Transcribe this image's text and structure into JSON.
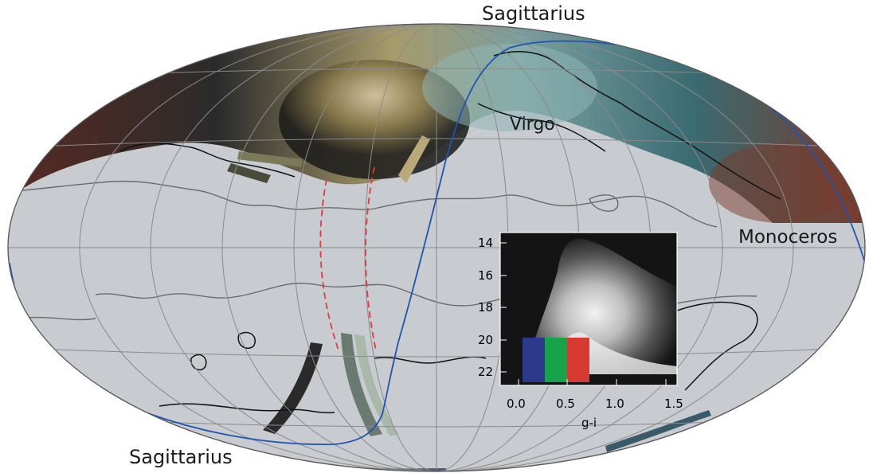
{
  "labels": {
    "sagittarius_top": "Sagittarius",
    "virgo": "Virgo",
    "monoceros": "Monoceros",
    "sagittarius_bottom": "Sagittarius"
  },
  "inset": {
    "y_ticks": [
      "14",
      "16",
      "18",
      "20",
      "22"
    ],
    "x_ticks": [
      "0.0",
      "0.5",
      "1.0",
      "1.5"
    ],
    "xlabel": "g-i",
    "color_bands": [
      "#2d3a8c",
      "#17a34a",
      "#d63a32"
    ]
  },
  "colors": {
    "sky_fill": "#c8cbd0",
    "grid": "#8a8a8a",
    "orbit": "#1f55b0",
    "stream_dash": "#e03a3a"
  }
}
